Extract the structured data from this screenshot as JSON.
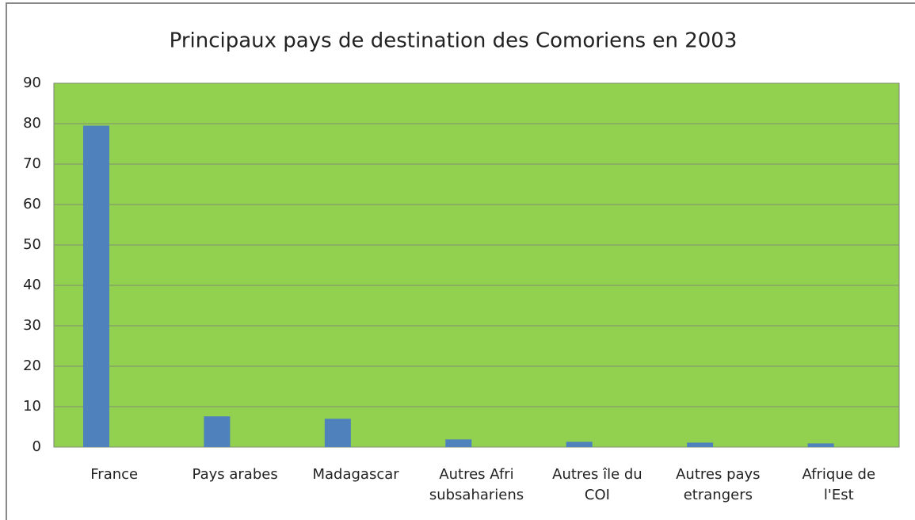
{
  "chart_data": {
    "type": "bar",
    "title": "Principaux pays de destination des Comoriens en 2003",
    "categories": [
      "France",
      "Pays arabes",
      "Madagascar",
      "Autres Afri\nsubsahariens",
      "Autres île du\nCOI",
      "Autres pays\netrangers",
      "Afrique de\nl'Est"
    ],
    "values": [
      79.5,
      7.6,
      7.0,
      1.9,
      1.3,
      1.1,
      0.9
    ],
    "color": "#4f81bd",
    "plot_background": "#92d050",
    "ylim": [
      0,
      90
    ],
    "yticks": [
      0,
      10,
      20,
      30,
      40,
      50,
      60,
      70,
      80,
      90
    ],
    "grid": true
  }
}
